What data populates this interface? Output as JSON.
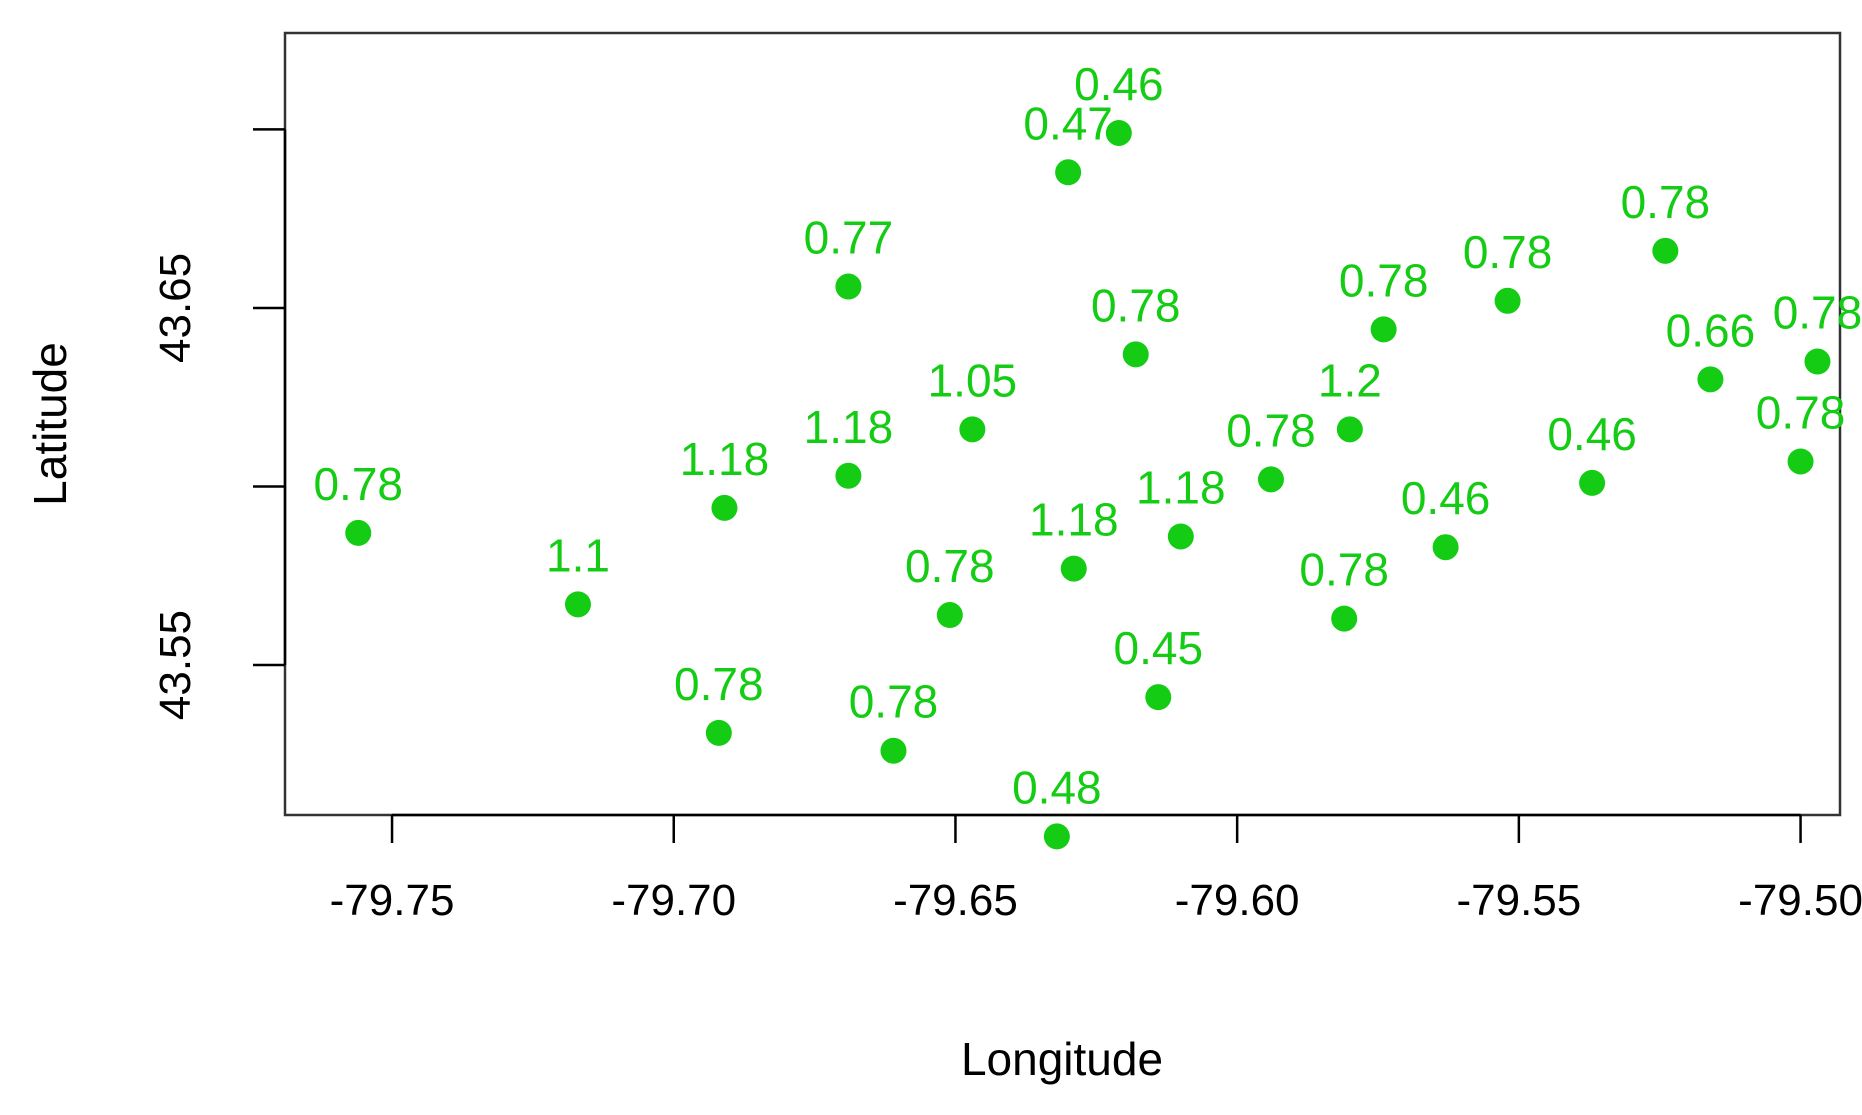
{
  "chart_data": {
    "type": "scatter",
    "xlabel": "Longitude",
    "ylabel": "Latitude",
    "xlim": [
      -79.769,
      -79.493
    ],
    "ylim": [
      43.508,
      43.727
    ],
    "x_ticks": [
      -79.75,
      -79.7,
      -79.65,
      -79.6,
      -79.55,
      -79.5
    ],
    "x_tick_labels": [
      "-79.75",
      "-79.70",
      "-79.65",
      "-79.60",
      "-79.55",
      "-79.50"
    ],
    "y_ticks": [
      43.55,
      43.65
    ],
    "y_tick_labels": [
      "43.55",
      "43.65"
    ],
    "y_ticks_unlabeled": [
      43.6,
      43.7
    ],
    "point_color": "#14cc14",
    "points": [
      {
        "lon": -79.756,
        "lat": 43.587,
        "label": "0.78"
      },
      {
        "lon": -79.717,
        "lat": 43.567,
        "label": "1.1"
      },
      {
        "lon": -79.691,
        "lat": 43.594,
        "label": "1.18"
      },
      {
        "lon": -79.692,
        "lat": 43.531,
        "label": "0.78"
      },
      {
        "lon": -79.669,
        "lat": 43.603,
        "label": "1.18"
      },
      {
        "lon": -79.669,
        "lat": 43.656,
        "label": "0.77"
      },
      {
        "lon": -79.661,
        "lat": 43.526,
        "label": "0.78"
      },
      {
        "lon": -79.651,
        "lat": 43.564,
        "label": "0.78"
      },
      {
        "lon": -79.647,
        "lat": 43.616,
        "label": "1.05"
      },
      {
        "lon": -79.632,
        "lat": 43.502,
        "label": "0.48"
      },
      {
        "lon": -79.63,
        "lat": 43.688,
        "label": "0.47"
      },
      {
        "lon": -79.629,
        "lat": 43.577,
        "label": "1.18"
      },
      {
        "lon": -79.621,
        "lat": 43.699,
        "label": "0.46"
      },
      {
        "lon": -79.618,
        "lat": 43.637,
        "label": "0.78"
      },
      {
        "lon": -79.614,
        "lat": 43.541,
        "label": "0.45"
      },
      {
        "lon": -79.61,
        "lat": 43.586,
        "label": "1.18"
      },
      {
        "lon": -79.594,
        "lat": 43.602,
        "label": "0.78"
      },
      {
        "lon": -79.581,
        "lat": 43.563,
        "label": "0.78"
      },
      {
        "lon": -79.58,
        "lat": 43.616,
        "label": "1.2"
      },
      {
        "lon": -79.574,
        "lat": 43.644,
        "label": "0.78"
      },
      {
        "lon": -79.563,
        "lat": 43.583,
        "label": "0.46"
      },
      {
        "lon": -79.552,
        "lat": 43.652,
        "label": "0.78"
      },
      {
        "lon": -79.537,
        "lat": 43.601,
        "label": "0.46"
      },
      {
        "lon": -79.524,
        "lat": 43.666,
        "label": "0.78"
      },
      {
        "lon": -79.516,
        "lat": 43.63,
        "label": "0.66"
      },
      {
        "lon": -79.497,
        "lat": 43.635,
        "label": "0.78"
      },
      {
        "lon": -79.5,
        "lat": 43.607,
        "label": "0.78"
      }
    ]
  }
}
